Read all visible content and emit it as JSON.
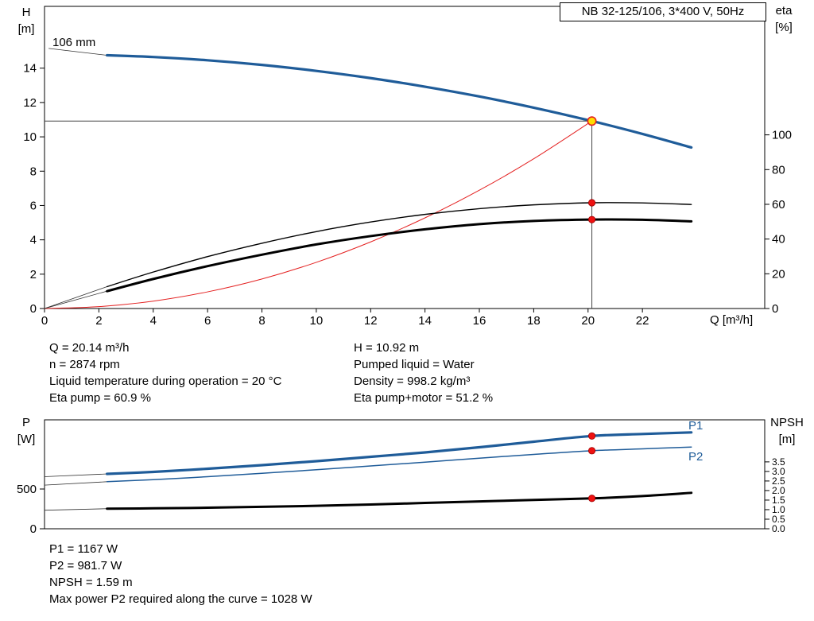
{
  "colors": {
    "curve_blue": "#1f5c99",
    "curve_black": "#000000",
    "system_red": "#e42222",
    "dot_red": "#ee1111",
    "dot_stroke": "#990000",
    "op_yellow": "#ffdd00",
    "ref_line": "#444444",
    "axis": "#000000"
  },
  "details": {
    "left": [
      "Q = 20.14 m³/h",
      "n = 2874 rpm",
      "Liquid temperature during operation = 20 °C",
      "Eta pump = 60.9 %"
    ],
    "right": [
      "H = 10.92 m",
      "Pumped liquid = Water",
      "Density = 998.2 kg/m³",
      "Eta pump+motor = 51.2 %"
    ]
  },
  "footer": [
    "P1 = 1167 W",
    "P2 = 981.7 W",
    "NPSH = 1.59 m",
    "Max power P2 required along the curve = 1028 W"
  ],
  "chart_data": [
    {
      "id": "head-eta-chart",
      "type": "line",
      "title": "NB 32-125/106, 3*400 V, 50Hz",
      "grid": false,
      "x_axis": {
        "label": "Q [m³/h]",
        "min": 0,
        "max": 26.5,
        "ticks": [
          0,
          2,
          4,
          6,
          8,
          10,
          12,
          14,
          16,
          18,
          20,
          22
        ]
      },
      "y_left": {
        "label": "H [m]",
        "symbol": "H",
        "unit": "[m]",
        "min": 0,
        "max": 17.6,
        "ticks": [
          0,
          2,
          4,
          6,
          8,
          10,
          12,
          14
        ]
      },
      "y_right": {
        "label": "eta [%]",
        "symbol": "eta",
        "unit": "[%]",
        "min": 0,
        "max": 174,
        "ticks": [
          0,
          20,
          40,
          60,
          80,
          100
        ]
      },
      "operating_point": {
        "q": 20.14,
        "h": 10.92
      },
      "series": [
        {
          "name": "head-curve",
          "label": "106 mm",
          "axis": "left",
          "color": "blue",
          "width": 3.2,
          "lead_in": [
            0.15,
            15.15
          ],
          "points": [
            [
              2.3,
              14.75
            ],
            [
              4,
              14.65
            ],
            [
              6,
              14.46
            ],
            [
              8,
              14.19
            ],
            [
              10,
              13.84
            ],
            [
              12,
              13.42
            ],
            [
              14,
              12.92
            ],
            [
              16,
              12.35
            ],
            [
              18,
              11.7
            ],
            [
              20.14,
              10.92
            ],
            [
              22,
              10.17
            ],
            [
              23.8,
              9.38
            ]
          ]
        },
        {
          "name": "system-curve",
          "axis": "left",
          "color": "red",
          "width": 1,
          "points": [
            [
              0,
              0
            ],
            [
              2,
              0.11
            ],
            [
              4,
              0.43
            ],
            [
              6,
              0.97
            ],
            [
              8,
              1.72
            ],
            [
              10,
              2.69
            ],
            [
              12,
              3.88
            ],
            [
              14,
              5.28
            ],
            [
              16,
              6.89
            ],
            [
              18,
              8.72
            ],
            [
              20.14,
              10.92
            ]
          ]
        },
        {
          "name": "eta-pump-curve",
          "axis": "right",
          "color": "black",
          "width": 1.4,
          "lead_in": [
            0,
            0
          ],
          "points": [
            [
              2.3,
              12.6
            ],
            [
              4,
              21.0
            ],
            [
              6,
              29.9
            ],
            [
              8,
              37.6
            ],
            [
              10,
              44.3
            ],
            [
              12,
              49.8
            ],
            [
              14,
              54.2
            ],
            [
              16,
              57.5
            ],
            [
              18,
              59.7
            ],
            [
              20.14,
              60.9
            ],
            [
              22,
              60.8
            ],
            [
              23.8,
              59.9
            ]
          ]
        },
        {
          "name": "eta-pump-motor-curve",
          "axis": "right",
          "color": "black",
          "width": 3,
          "lead_in": [
            0,
            0
          ],
          "points": [
            [
              2.3,
              10.0
            ],
            [
              4,
              17.0
            ],
            [
              6,
              24.4
            ],
            [
              8,
              31.0
            ],
            [
              10,
              36.9
            ],
            [
              12,
              41.7
            ],
            [
              14,
              45.6
            ],
            [
              16,
              48.6
            ],
            [
              18,
              50.4
            ],
            [
              20.14,
              51.2
            ],
            [
              22,
              51.1
            ],
            [
              23.8,
              50.2
            ]
          ]
        }
      ],
      "ref_lines": {
        "h_line": {
          "v": 10.92,
          "from_q": 0,
          "to_q": 20.14
        },
        "v_line": {
          "q": 20.14,
          "from_v": 0,
          "to_v": 10.92
        }
      },
      "markers": [
        {
          "axis": "right",
          "q": 20.14,
          "v": 60.9,
          "style": "red-dot"
        },
        {
          "axis": "right",
          "q": 20.14,
          "v": 51.2,
          "style": "red-dot"
        },
        {
          "axis": "left",
          "q": 20.14,
          "v": 10.92,
          "style": "op-point"
        }
      ]
    },
    {
      "id": "power-npsh-chart",
      "type": "line",
      "grid": false,
      "x_axis": {
        "min": 0,
        "max": 26.5,
        "ticks": []
      },
      "y_left": {
        "label": "P [W]",
        "symbol": "P",
        "unit": "[W]",
        "min": 0,
        "max": 1370,
        "ticks": [
          0,
          500
        ]
      },
      "y_right": {
        "label": "NPSH [m]",
        "symbol": "NPSH",
        "unit": "[m]",
        "min": 0,
        "max": 5.7,
        "ticks": [
          0,
          0.5,
          1,
          1.5,
          2,
          2.5,
          3,
          3.5
        ],
        "tick_labels": [
          "0.0",
          "0.5",
          "1.0",
          "1.5",
          "2.0",
          "2.5",
          "3.0",
          "3.5"
        ]
      },
      "series": [
        {
          "name": "p1-curve",
          "label": "P1",
          "axis": "left",
          "color": "blue",
          "width": 3.2,
          "lead_in": [
            0,
            655
          ],
          "points": [
            [
              2.3,
              690
            ],
            [
              4,
              715
            ],
            [
              6,
              755
            ],
            [
              8,
              800
            ],
            [
              10,
              850
            ],
            [
              12,
              905
            ],
            [
              14,
              960
            ],
            [
              16,
              1025
            ],
            [
              18,
              1095
            ],
            [
              20.14,
              1167
            ],
            [
              22,
              1192
            ],
            [
              23.8,
              1212
            ]
          ]
        },
        {
          "name": "p2-curve",
          "label": "P2",
          "axis": "left",
          "color": "blue",
          "width": 1.5,
          "lead_in": [
            0,
            549
          ],
          "points": [
            [
              2.3,
              592
            ],
            [
              4,
              618
            ],
            [
              6,
              655
            ],
            [
              8,
              698
            ],
            [
              10,
              742
            ],
            [
              12,
              790
            ],
            [
              14,
              838
            ],
            [
              16,
              888
            ],
            [
              18,
              935
            ],
            [
              20.14,
              981.7
            ],
            [
              22,
              1005
            ],
            [
              23.8,
              1028
            ]
          ]
        },
        {
          "name": "npsh-curve",
          "axis": "right",
          "color": "black",
          "width": 3,
          "lead_in": [
            0,
            0.97
          ],
          "points": [
            [
              2.3,
              1.05
            ],
            [
              4,
              1.07
            ],
            [
              6,
              1.1
            ],
            [
              8,
              1.15
            ],
            [
              10,
              1.2
            ],
            [
              12,
              1.27
            ],
            [
              14,
              1.35
            ],
            [
              16,
              1.43
            ],
            [
              18,
              1.51
            ],
            [
              20.14,
              1.59
            ],
            [
              22,
              1.71
            ],
            [
              23.8,
              1.88
            ]
          ]
        }
      ],
      "markers": [
        {
          "axis": "left",
          "q": 20.14,
          "v": 1167,
          "style": "red-dot"
        },
        {
          "axis": "left",
          "q": 20.14,
          "v": 981.7,
          "style": "red-dot"
        },
        {
          "axis": "right",
          "q": 20.14,
          "v": 1.59,
          "style": "red-dot"
        }
      ]
    }
  ]
}
